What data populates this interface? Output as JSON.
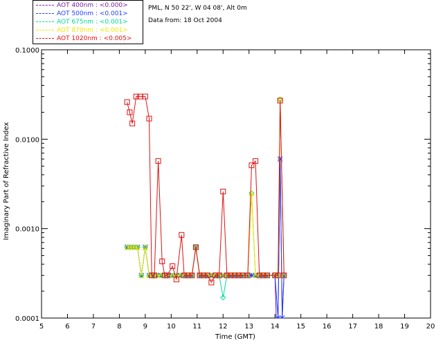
{
  "site": {
    "location": "PML, N 50 22', W 04 08', Alt 0m",
    "date_line": "Data from: 18 Oct 2004"
  },
  "legend": [
    {
      "label": "AOT  400nm : <0.000>",
      "color": "#7b1fa2"
    },
    {
      "label": "AOT  500nm : <0.001>",
      "color": "#1e3cff"
    },
    {
      "label": "AOT  675nm : <0.001>",
      "color": "#00d99a"
    },
    {
      "label": "AOT  870nm : <0.001>",
      "color": "#f2e600"
    },
    {
      "label": "AOT 1020nm : <0.005>",
      "color": "#e01010"
    }
  ],
  "chart_data": {
    "type": "line",
    "xlabel": "Time (GMT)",
    "ylabel": "Imaginary Part of Refractive Index",
    "xlim": [
      5,
      20
    ],
    "ylim": [
      0.0001,
      0.1
    ],
    "yscale": "log",
    "x_ticks": [
      5,
      6,
      7,
      8,
      9,
      10,
      11,
      12,
      13,
      14,
      15,
      16,
      17,
      18,
      19,
      20
    ],
    "y_ticks": [
      {
        "value": 0.0001,
        "label": "0.0001"
      },
      {
        "value": 0.001,
        "label": "0.0010"
      },
      {
        "value": 0.01,
        "label": "0.0100"
      },
      {
        "value": 0.1,
        "label": "0.1000"
      }
    ],
    "series": [
      {
        "name": "AOT  400nm : <0.000>",
        "color": "#7b1fa2",
        "marker": "none",
        "x": [
          8.3,
          8.4,
          8.5,
          8.6,
          8.7,
          8.85,
          9.0,
          9.15,
          9.3,
          9.45,
          9.6,
          9.75,
          9.9,
          10.05,
          10.2,
          10.35,
          10.5,
          10.65,
          10.8,
          10.95,
          11.1,
          11.25,
          11.4,
          11.55,
          11.7,
          11.85,
          12.0,
          12.15,
          12.3,
          12.45,
          12.6,
          12.75,
          12.95,
          13.1,
          13.25,
          13.4,
          13.55,
          13.7,
          14.0,
          14.05,
          14.12,
          14.2,
          14.28,
          14.35
        ],
        "y": [
          0.00062,
          0.00062,
          0.00062,
          0.00062,
          0.00062,
          0.0003,
          0.00062,
          0.0003,
          0.0003,
          0.0003,
          0.0003,
          0.0003,
          0.0003,
          0.0003,
          0.0003,
          0.0003,
          0.0003,
          0.0003,
          0.0003,
          0.00062,
          0.0003,
          0.0003,
          0.0003,
          0.0003,
          0.0003,
          0.0003,
          0.0003,
          0.0003,
          0.0003,
          0.0003,
          0.0003,
          0.0003,
          0.0003,
          0.0003,
          0.0003,
          0.0003,
          0.0003,
          0.0003,
          0.0003,
          0.0001,
          0.0001,
          0.006,
          0.0001,
          0.0003
        ]
      },
      {
        "name": "AOT  500nm : <0.001>",
        "color": "#1e3cff",
        "marker": "star",
        "x": [
          8.3,
          8.4,
          8.5,
          8.6,
          8.7,
          8.85,
          9.0,
          9.15,
          9.3,
          9.45,
          9.6,
          9.75,
          9.9,
          10.05,
          10.2,
          10.35,
          10.5,
          10.65,
          10.8,
          10.95,
          11.1,
          11.25,
          11.4,
          11.55,
          11.7,
          11.85,
          12.0,
          12.15,
          12.3,
          12.45,
          12.6,
          12.75,
          12.95,
          13.1,
          13.25,
          13.4,
          13.55,
          13.7,
          14.0,
          14.12,
          14.2,
          14.28,
          14.35
        ],
        "y": [
          0.00062,
          0.00062,
          0.00062,
          0.00062,
          0.00062,
          0.0003,
          0.00062,
          0.0003,
          0.0003,
          0.0003,
          0.0003,
          0.0003,
          0.0003,
          0.0003,
          0.0003,
          0.0003,
          0.0003,
          0.0003,
          0.0003,
          0.00062,
          0.0003,
          0.0003,
          0.0003,
          0.0003,
          0.0003,
          0.0003,
          0.0003,
          0.0003,
          0.0003,
          0.0003,
          0.0003,
          0.0003,
          0.0003,
          0.0003,
          0.0003,
          0.0003,
          0.0003,
          0.0003,
          0.0003,
          0.0001,
          0.006,
          0.0001,
          0.0003
        ]
      },
      {
        "name": "AOT  675nm : <0.001>",
        "color": "#00d99a",
        "marker": "diamond",
        "x": [
          8.3,
          8.4,
          8.5,
          8.6,
          8.7,
          8.85,
          9.0,
          9.15,
          9.3,
          9.45,
          9.6,
          9.75,
          9.9,
          10.05,
          10.2,
          10.35,
          10.5,
          10.65,
          10.8,
          10.95,
          11.1,
          11.25,
          11.4,
          11.55,
          11.7,
          11.85,
          12.0,
          12.15,
          12.3,
          12.45,
          12.6,
          12.75,
          12.95,
          13.1,
          13.25,
          13.4,
          13.55,
          13.7,
          14.0,
          14.12,
          14.2,
          14.35
        ],
        "y": [
          0.00062,
          0.00062,
          0.00062,
          0.00062,
          0.00062,
          0.0003,
          0.00062,
          0.0003,
          0.0003,
          0.0003,
          0.0003,
          0.0003,
          0.0003,
          0.0003,
          0.0003,
          0.0003,
          0.0003,
          0.0003,
          0.0003,
          0.00062,
          0.0003,
          0.0003,
          0.0003,
          0.0003,
          0.0003,
          0.0003,
          0.00017,
          0.0003,
          0.0003,
          0.0003,
          0.0003,
          0.0003,
          0.0003,
          0.0025,
          0.0003,
          0.0003,
          0.0003,
          0.0003,
          0.0003,
          0.0003,
          0.028,
          0.0003
        ]
      },
      {
        "name": "AOT  870nm : <0.001>",
        "color": "#f2e600",
        "marker": "triangle",
        "x": [
          8.3,
          8.4,
          8.5,
          8.6,
          8.7,
          8.85,
          9.0,
          9.15,
          9.3,
          9.45,
          9.6,
          9.75,
          9.9,
          10.05,
          10.2,
          10.35,
          10.5,
          10.65,
          10.8,
          10.95,
          11.1,
          11.25,
          11.4,
          11.55,
          11.7,
          11.85,
          12.0,
          12.15,
          12.3,
          12.45,
          12.6,
          12.75,
          12.95,
          13.1,
          13.25,
          13.4,
          13.55,
          13.7,
          14.0,
          14.12,
          14.2,
          14.35
        ],
        "y": [
          0.00062,
          0.00062,
          0.00062,
          0.00062,
          0.00062,
          0.0003,
          0.00062,
          0.0003,
          0.0003,
          0.0003,
          0.0003,
          0.0003,
          0.0003,
          0.0003,
          0.0003,
          0.0003,
          0.0003,
          0.0003,
          0.0003,
          0.00062,
          0.0003,
          0.0003,
          0.0003,
          0.0003,
          0.0003,
          0.0003,
          0.0003,
          0.0003,
          0.0003,
          0.0003,
          0.0003,
          0.0003,
          0.0003,
          0.0025,
          0.0003,
          0.0003,
          0.0003,
          0.0003,
          0.0003,
          0.0003,
          0.028,
          0.0003
        ]
      },
      {
        "name": "AOT 1020nm : <0.005>",
        "color": "#e01010",
        "marker": "square",
        "x": [
          8.3,
          8.4,
          8.5,
          8.65,
          8.8,
          9.0,
          9.15,
          9.25,
          9.35,
          9.5,
          9.65,
          9.75,
          9.85,
          10.05,
          10.2,
          10.4,
          10.5,
          10.65,
          10.8,
          10.95,
          11.1,
          11.25,
          11.4,
          11.55,
          11.7,
          11.85,
          12.0,
          12.15,
          12.3,
          12.45,
          12.6,
          12.75,
          12.95,
          13.1,
          13.25,
          13.4,
          13.55,
          13.7,
          14.0,
          14.12,
          14.2,
          14.35
        ],
        "y": [
          0.026,
          0.02,
          0.015,
          0.03,
          0.03,
          0.03,
          0.017,
          0.0003,
          0.0003,
          0.0057,
          0.00043,
          0.0003,
          0.0003,
          0.00038,
          0.00027,
          0.00085,
          0.0003,
          0.0003,
          0.0003,
          0.00062,
          0.0003,
          0.0003,
          0.0003,
          0.00025,
          0.0003,
          0.0003,
          0.0026,
          0.0003,
          0.0003,
          0.0003,
          0.0003,
          0.0003,
          0.0003,
          0.0051,
          0.0057,
          0.0003,
          0.0003,
          0.0003,
          0.0003,
          0.0003,
          0.027,
          0.0003
        ]
      }
    ]
  }
}
